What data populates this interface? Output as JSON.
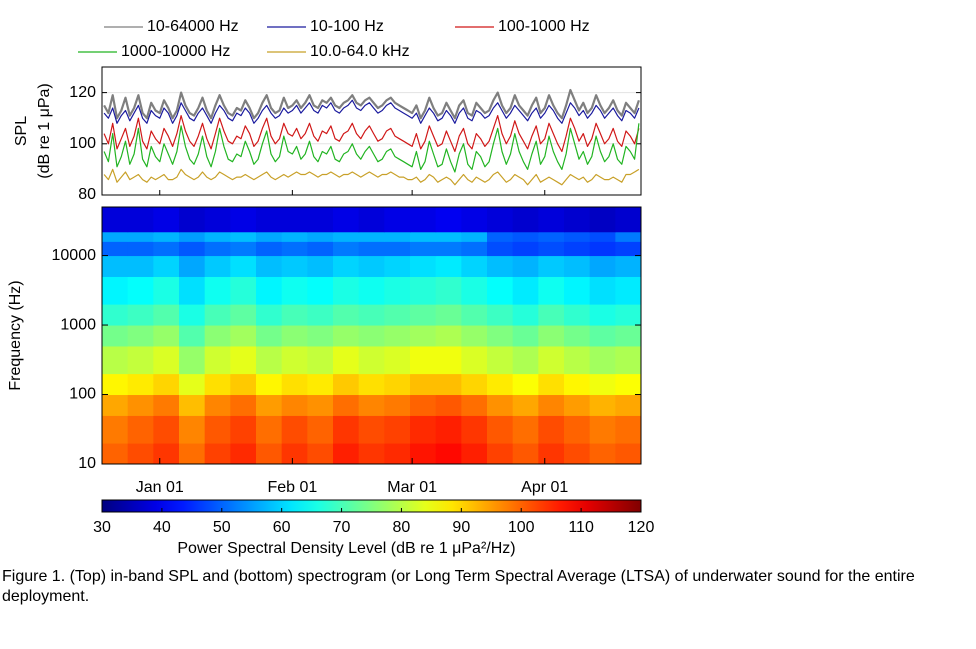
{
  "chart_data": [
    {
      "type": "line",
      "ylabel": [
        "SPL",
        "(dB re 1 μPa)"
      ],
      "legend": "top",
      "grid": true,
      "ylim": [
        80,
        130
      ],
      "yticks": [
        80,
        100,
        120
      ],
      "x": [
        null,
        null,
        null,
        null,
        null,
        null,
        null,
        null,
        null,
        null,
        null,
        null,
        null,
        "Jan 01",
        null,
        null,
        null,
        null,
        null,
        null,
        null,
        null,
        null,
        null,
        null,
        null,
        null,
        null,
        null,
        null,
        null,
        null,
        null,
        null,
        null,
        null,
        null,
        null,
        null,
        null,
        null,
        null,
        null,
        null,
        "Feb 01",
        null,
        null,
        null,
        null,
        null,
        null,
        null,
        null,
        null,
        null,
        null,
        null,
        null,
        null,
        null,
        null,
        null,
        null,
        null,
        null,
        null,
        null,
        null,
        null,
        null,
        null,
        null,
        "Mar 01",
        null,
        null,
        null,
        null,
        null,
        null,
        null,
        null,
        null,
        null,
        null,
        null,
        null,
        null,
        null,
        null,
        null,
        null,
        null,
        null,
        null,
        null,
        null,
        null,
        null,
        null,
        null,
        null,
        null,
        null,
        "Apr 01",
        null,
        null,
        null,
        null,
        null,
        null,
        null,
        null,
        null,
        null,
        null,
        null,
        null,
        null,
        null,
        null,
        null,
        null,
        null,
        null,
        null,
        null
      ],
      "series": [
        {
          "name": "10-64000 Hz",
          "color": "#7f7f7f",
          "values": [
            115,
            112,
            119,
            110,
            113,
            118,
            111,
            114,
            119,
            112,
            110,
            116,
            113,
            112,
            117,
            114,
            110,
            113,
            120,
            115,
            112,
            111,
            114,
            118,
            113,
            110,
            115,
            119,
            115,
            112,
            111,
            114,
            113,
            117,
            114,
            110,
            112,
            116,
            119,
            114,
            112,
            113,
            118,
            114,
            115,
            117,
            114,
            116,
            119,
            115,
            114,
            117,
            116,
            118,
            115,
            114,
            116,
            117,
            119,
            116,
            115,
            117,
            118,
            116,
            114,
            115,
            117,
            118,
            116,
            115,
            114,
            113,
            112,
            115,
            110,
            113,
            118,
            114,
            111,
            112,
            116,
            113,
            110,
            115,
            117,
            112,
            111,
            116,
            114,
            112,
            113,
            117,
            120,
            115,
            112,
            114,
            119,
            115,
            113,
            111,
            115,
            118,
            112,
            114,
            119,
            115,
            112,
            110,
            115,
            121,
            117,
            113,
            116,
            112,
            114,
            119,
            115,
            112,
            114,
            117,
            113,
            111,
            116,
            114,
            112,
            117
          ]
        },
        {
          "name": "10-100 Hz",
          "color": "#1a1a9e",
          "values": [
            112,
            110,
            114,
            108,
            111,
            113,
            109,
            112,
            115,
            110,
            108,
            113,
            111,
            110,
            114,
            112,
            108,
            111,
            116,
            113,
            110,
            109,
            112,
            114,
            111,
            108,
            112,
            115,
            113,
            110,
            109,
            112,
            111,
            114,
            112,
            108,
            110,
            113,
            115,
            112,
            110,
            111,
            114,
            112,
            113,
            115,
            112,
            114,
            116,
            113,
            112,
            115,
            114,
            116,
            113,
            112,
            114,
            115,
            117,
            114,
            113,
            115,
            116,
            114,
            112,
            113,
            115,
            116,
            114,
            113,
            112,
            111,
            110,
            112,
            108,
            111,
            114,
            112,
            109,
            110,
            113,
            111,
            108,
            112,
            114,
            110,
            109,
            113,
            112,
            110,
            111,
            114,
            116,
            113,
            110,
            112,
            115,
            113,
            111,
            109,
            112,
            114,
            110,
            112,
            115,
            113,
            110,
            108,
            112,
            116,
            114,
            111,
            113,
            110,
            112,
            115,
            113,
            110,
            112,
            114,
            111,
            109,
            113,
            112,
            110,
            114
          ]
        },
        {
          "name": "100-1000 Hz",
          "color": "#d01818",
          "values": [
            104,
            100,
            108,
            98,
            102,
            106,
            99,
            103,
            110,
            101,
            98,
            105,
            102,
            100,
            106,
            103,
            99,
            104,
            111,
            105,
            101,
            99,
            103,
            108,
            102,
            98,
            104,
            110,
            105,
            101,
            100,
            103,
            102,
            107,
            104,
            99,
            101,
            106,
            110,
            103,
            100,
            102,
            108,
            104,
            103,
            106,
            102,
            104,
            108,
            103,
            101,
            105,
            104,
            107,
            102,
            101,
            104,
            105,
            108,
            104,
            102,
            105,
            107,
            104,
            101,
            102,
            105,
            106,
            103,
            102,
            101,
            100,
            99,
            104,
            98,
            101,
            107,
            103,
            99,
            100,
            105,
            101,
            97,
            103,
            106,
            100,
            98,
            104,
            102,
            99,
            101,
            106,
            111,
            104,
            100,
            103,
            109,
            104,
            101,
            98,
            103,
            107,
            100,
            102,
            108,
            104,
            100,
            97,
            103,
            110,
            106,
            101,
            104,
            99,
            102,
            108,
            104,
            100,
            102,
            106,
            101,
            99,
            105,
            103,
            100,
            106
          ]
        },
        {
          "name": "1000-10000 Hz",
          "color": "#22b422",
          "values": [
            97,
            93,
            104,
            91,
            95,
            101,
            92,
            96,
            106,
            94,
            91,
            99,
            95,
            93,
            100,
            96,
            92,
            97,
            107,
            99,
            94,
            92,
            96,
            103,
            95,
            91,
            97,
            106,
            99,
            94,
            93,
            96,
            95,
            101,
            97,
            92,
            94,
            100,
            105,
            96,
            93,
            95,
            103,
            97,
            96,
            99,
            94,
            96,
            101,
            95,
            93,
            97,
            96,
            99,
            94,
            93,
            96,
            97,
            100,
            96,
            94,
            97,
            99,
            96,
            93,
            94,
            97,
            98,
            95,
            94,
            93,
            92,
            91,
            97,
            90,
            93,
            101,
            96,
            91,
            92,
            98,
            93,
            89,
            96,
            100,
            92,
            90,
            97,
            95,
            91,
            93,
            100,
            106,
            97,
            92,
            96,
            104,
            97,
            93,
            90,
            96,
            101,
            92,
            95,
            103,
            97,
            93,
            90,
            96,
            106,
            100,
            94,
            97,
            92,
            95,
            103,
            97,
            93,
            95,
            100,
            94,
            92,
            99,
            97,
            94,
            108
          ]
        },
        {
          "name": "10.0-64.0 kHz",
          "color": "#c8a028",
          "values": [
            88,
            86,
            90,
            85,
            87,
            89,
            86,
            87,
            88,
            86,
            85,
            87,
            86,
            87,
            88,
            86,
            86,
            87,
            90,
            88,
            87,
            86,
            87,
            89,
            87,
            86,
            87,
            89,
            88,
            87,
            86,
            87,
            87,
            88,
            87,
            86,
            87,
            88,
            89,
            87,
            86,
            87,
            88,
            87,
            88,
            89,
            88,
            88,
            89,
            88,
            87,
            88,
            88,
            89,
            88,
            87,
            88,
            88,
            89,
            88,
            87,
            88,
            89,
            88,
            87,
            88,
            88,
            89,
            88,
            87,
            87,
            86,
            86,
            87,
            85,
            86,
            88,
            87,
            85,
            86,
            87,
            86,
            84,
            86,
            88,
            86,
            85,
            87,
            86,
            85,
            86,
            88,
            89,
            87,
            85,
            86,
            88,
            87,
            86,
            84,
            86,
            88,
            85,
            86,
            87,
            86,
            85,
            84,
            86,
            88,
            87,
            86,
            87,
            85,
            86,
            88,
            87,
            86,
            86,
            87,
            86,
            85,
            88,
            88,
            89,
            90
          ]
        }
      ]
    },
    {
      "type": "heatmap",
      "ylabel": "Frequency (Hz)",
      "yscale": "log",
      "ylim": [
        10,
        50000
      ],
      "yticks": [
        10,
        100,
        1000,
        10000
      ],
      "y_bins": [
        10,
        20,
        50,
        100,
        200,
        500,
        1000,
        2000,
        5000,
        10000,
        16000,
        22000,
        50000
      ],
      "colormap": "jet",
      "clim": [
        30,
        120
      ],
      "cticks": [
        30,
        40,
        50,
        60,
        70,
        80,
        90,
        100,
        110,
        120
      ],
      "clabel": "Power Spectral Density Level (dB re 1 μPa²/Hz)",
      "z": [
        [
          100,
          102,
          104,
          99,
          103,
          105,
          101,
          104,
          102,
          106,
          104,
          105,
          107,
          108,
          106,
          103,
          101,
          104,
          102,
          100,
          101
        ],
        [
          98,
          100,
          102,
          97,
          101,
          103,
          99,
          102,
          100,
          104,
          102,
          103,
          105,
          106,
          104,
          101,
          99,
          102,
          100,
          98,
          99
        ],
        [
          94,
          96,
          98,
          92,
          97,
          99,
          95,
          97,
          96,
          99,
          97,
          98,
          100,
          101,
          99,
          96,
          94,
          97,
          95,
          93,
          94
        ],
        [
          87,
          88,
          90,
          84,
          89,
          91,
          87,
          89,
          88,
          91,
          89,
          90,
          92,
          92,
          90,
          88,
          86,
          89,
          87,
          85,
          86
        ],
        [
          80,
          81,
          83,
          77,
          82,
          84,
          80,
          82,
          81,
          84,
          82,
          83,
          85,
          85,
          83,
          81,
          79,
          82,
          80,
          78,
          79
        ],
        [
          74,
          75,
          77,
          71,
          76,
          78,
          74,
          76,
          75,
          77,
          76,
          77,
          78,
          79,
          77,
          75,
          73,
          76,
          74,
          72,
          73
        ],
        [
          68,
          69,
          71,
          66,
          70,
          72,
          68,
          70,
          69,
          71,
          70,
          71,
          72,
          73,
          71,
          69,
          67,
          70,
          68,
          66,
          67
        ],
        [
          63,
          64,
          66,
          61,
          65,
          67,
          63,
          65,
          64,
          66,
          65,
          66,
          67,
          68,
          66,
          64,
          62,
          65,
          63,
          61,
          62
        ],
        [
          58,
          58,
          60,
          56,
          59,
          61,
          58,
          59,
          58,
          60,
          59,
          60,
          61,
          62,
          60,
          58,
          57,
          59,
          58,
          56,
          57
        ],
        [
          50,
          50,
          51,
          49,
          51,
          52,
          50,
          51,
          50,
          52,
          51,
          51,
          52,
          52,
          51,
          48,
          47,
          48,
          47,
          46,
          47
        ],
        [
          56,
          56,
          57,
          55,
          57,
          58,
          56,
          57,
          56,
          57,
          57,
          57,
          58,
          58,
          57,
          50,
          49,
          50,
          49,
          48,
          52
        ],
        [
          38,
          38,
          39,
          37,
          38,
          39,
          38,
          38,
          38,
          39,
          38,
          39,
          39,
          40,
          39,
          38,
          37,
          38,
          37,
          36,
          37
        ]
      ]
    }
  ],
  "caption": "Figure 1. (Top) in-band SPL and (bottom) spectrogram (or Long Term Spectral Average (LTSA) of underwater sound for the entire deployment."
}
